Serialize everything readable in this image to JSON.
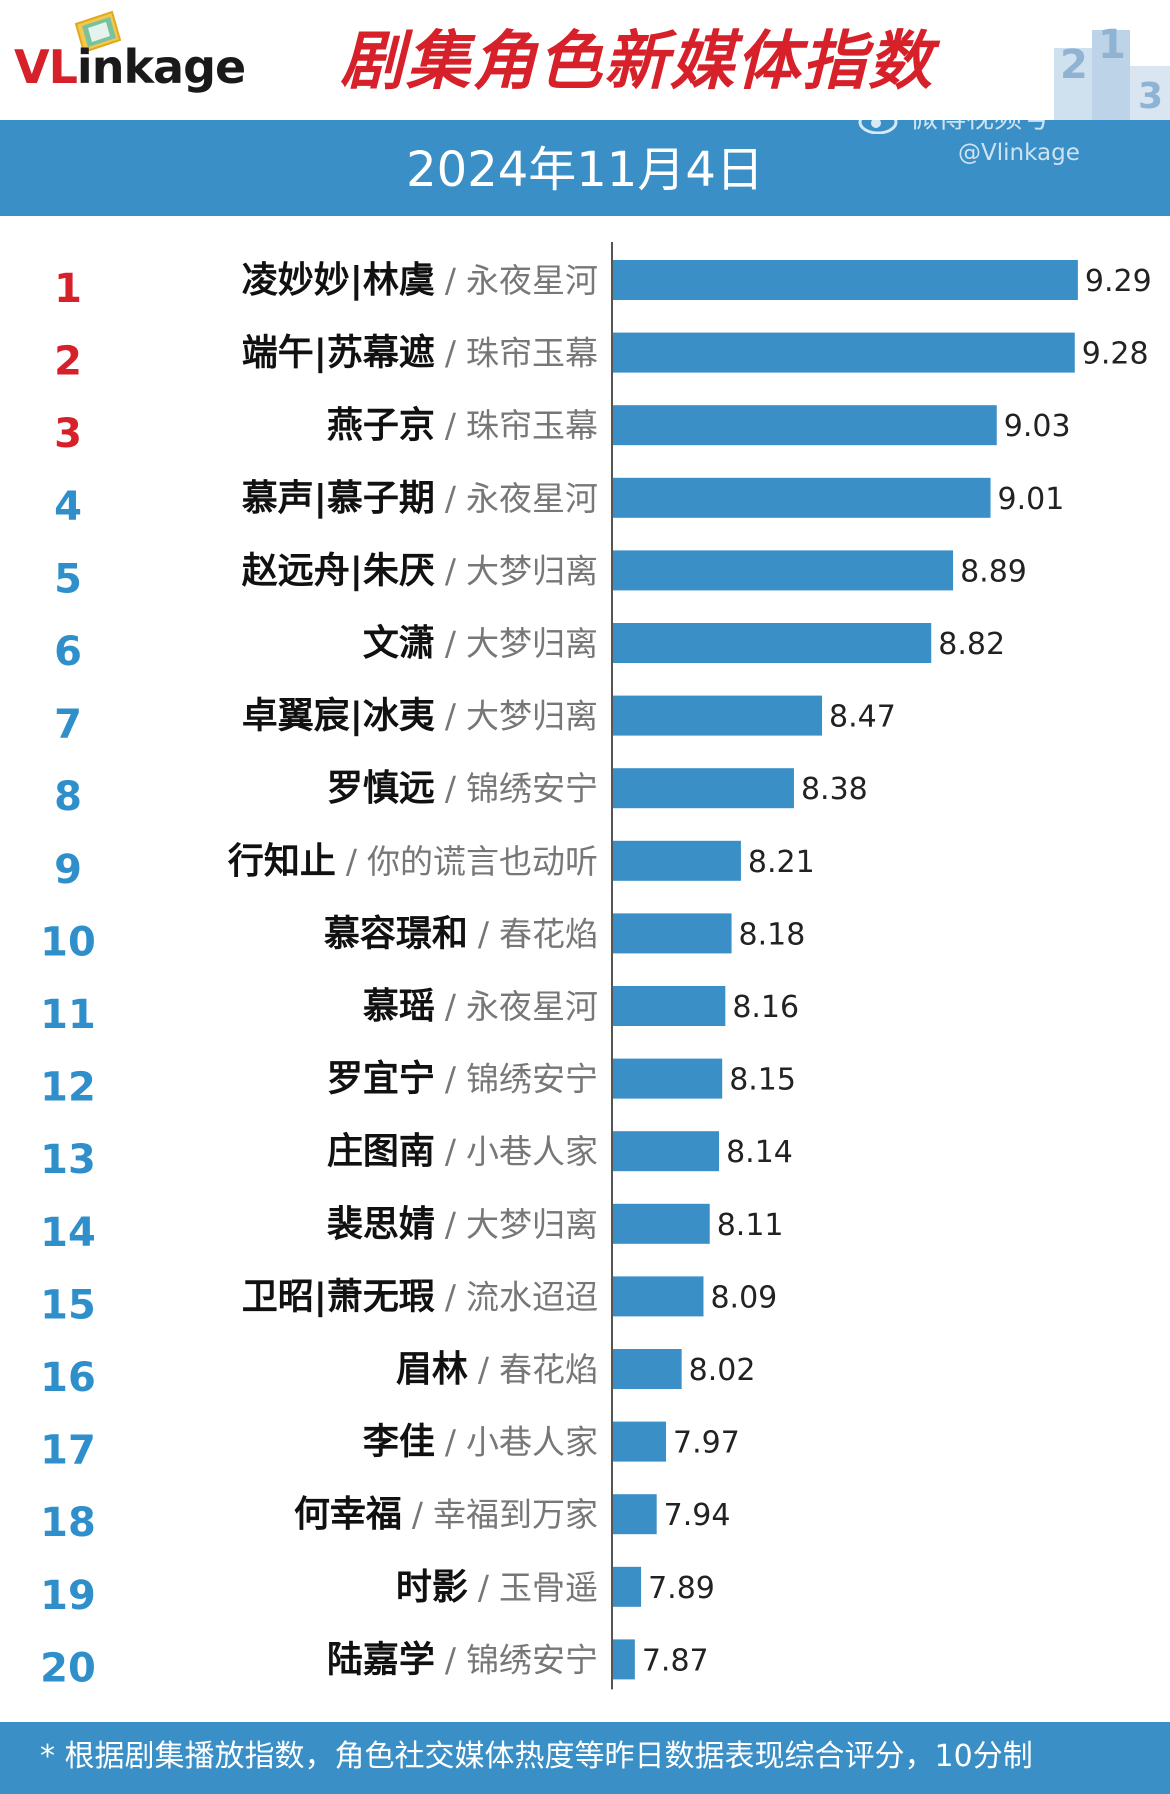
{
  "header": {
    "logo_text_red": "VL",
    "logo_text_dark": "inkage",
    "title": "剧集角色新媒体指数"
  },
  "date_band": {
    "date": "2024年11月4日"
  },
  "watermark": {
    "line1": "微博视频号",
    "line2": "@Vlinkage"
  },
  "colors": {
    "bar": "#3a8fc7",
    "band": "#3a8fc7",
    "title": "#d6202a",
    "rank_top3": "#d6202a",
    "rank_rest": "#2f8fcb"
  },
  "chart_data": {
    "type": "bar",
    "orientation": "horizontal",
    "categories": [
      "凌妙妙|林虞",
      "端午|苏幕遮",
      "燕子京",
      "慕声|慕子期",
      "赵远舟|朱厌",
      "文潇",
      "卓翼宸|冰夷",
      "罗慎远",
      "行知止",
      "慕容璟和",
      "慕瑶",
      "罗宜宁",
      "庄图南",
      "裴思婧",
      "卫昭|萧无瑕",
      "眉林",
      "李佳",
      "何幸福",
      "时影",
      "陆嘉学"
    ],
    "dramas": [
      "永夜星河",
      "珠帘玉幕",
      "珠帘玉幕",
      "永夜星河",
      "大梦归离",
      "大梦归离",
      "大梦归离",
      "锦绣安宁",
      "你的谎言也动听",
      "春花焰",
      "永夜星河",
      "锦绣安宁",
      "小巷人家",
      "大梦归离",
      "流水迢迢",
      "春花焰",
      "小巷人家",
      "幸福到万家",
      "玉骨遥",
      "锦绣安宁"
    ],
    "ranks": [
      "1",
      "2",
      "3",
      "4",
      "5",
      "6",
      "7",
      "8",
      "9",
      "10",
      "11",
      "12",
      "13",
      "14",
      "15",
      "16",
      "17",
      "18",
      "19",
      "20"
    ],
    "values": [
      9.29,
      9.28,
      9.03,
      9.01,
      8.89,
      8.82,
      8.47,
      8.38,
      8.21,
      8.18,
      8.16,
      8.15,
      8.14,
      8.11,
      8.09,
      8.02,
      7.97,
      7.94,
      7.89,
      7.87
    ],
    "value_labels": [
      "9.29",
      "9.28",
      "9.03",
      "9.01",
      "8.89",
      "8.82",
      "8.47",
      "8.38",
      "8.21",
      "8.18",
      "8.16",
      "8.15",
      "8.14",
      "8.11",
      "8.09",
      "8.02",
      "7.97",
      "7.94",
      "7.89",
      "7.87"
    ],
    "separator": "/",
    "xlim": [
      7.8,
      9.3
    ],
    "grid": false,
    "title": "剧集角色新媒体指数"
  },
  "footer": {
    "note": "* 根据剧集播放指数，角色社交媒体热度等昨日数据表现综合评分，10分制"
  }
}
